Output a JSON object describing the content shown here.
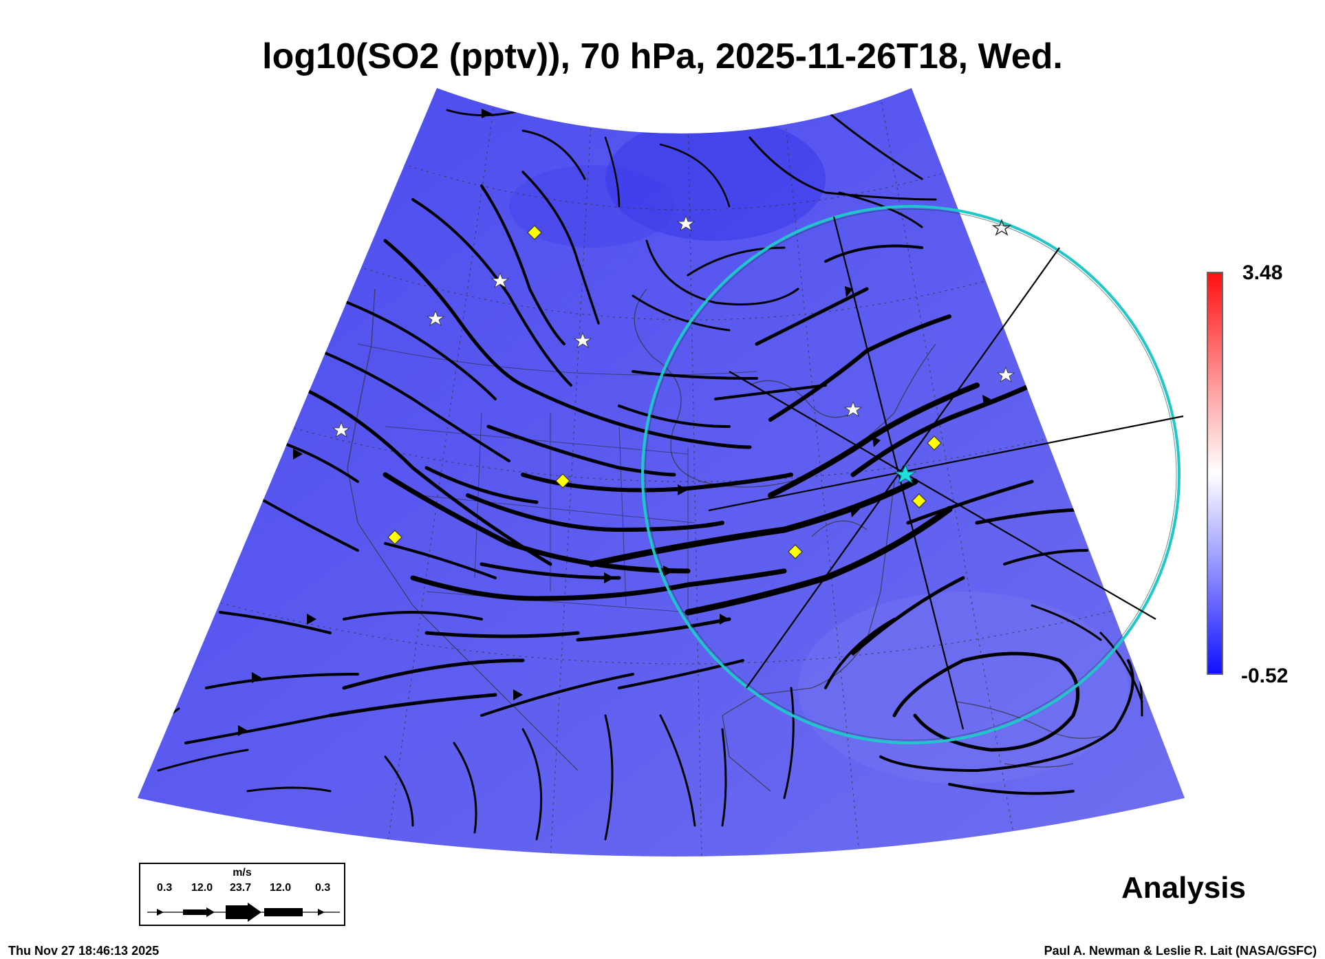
{
  "title": "log10(SO2 (pptv)), 70 hPa, 2025-11-26T18, Wed.",
  "colorbar": {
    "max_label": "3.48",
    "min_label": "-0.52",
    "max_color": "#ff1010",
    "mid_color": "#ffffff",
    "min_color": "#1010ff"
  },
  "analysis_label": "Analysis",
  "footer": {
    "timestamp": "Thu Nov 27 18:46:13 2025",
    "credit": "Paul A. Newman & Leslie R. Lait (NASA/GSFC)"
  },
  "legend": {
    "unit": "m/s",
    "values": [
      "0.3",
      "12.0",
      "23.7",
      "12.0",
      "0.3"
    ]
  },
  "colors": {
    "field": "#5a5af0",
    "streamline": "#000000",
    "circle": "#1ec8c8",
    "marker_fill": "#ffff00"
  },
  "icons": [
    "white-star-icon",
    "yellow-diamond-icon",
    "cyan-star-icon"
  ]
}
